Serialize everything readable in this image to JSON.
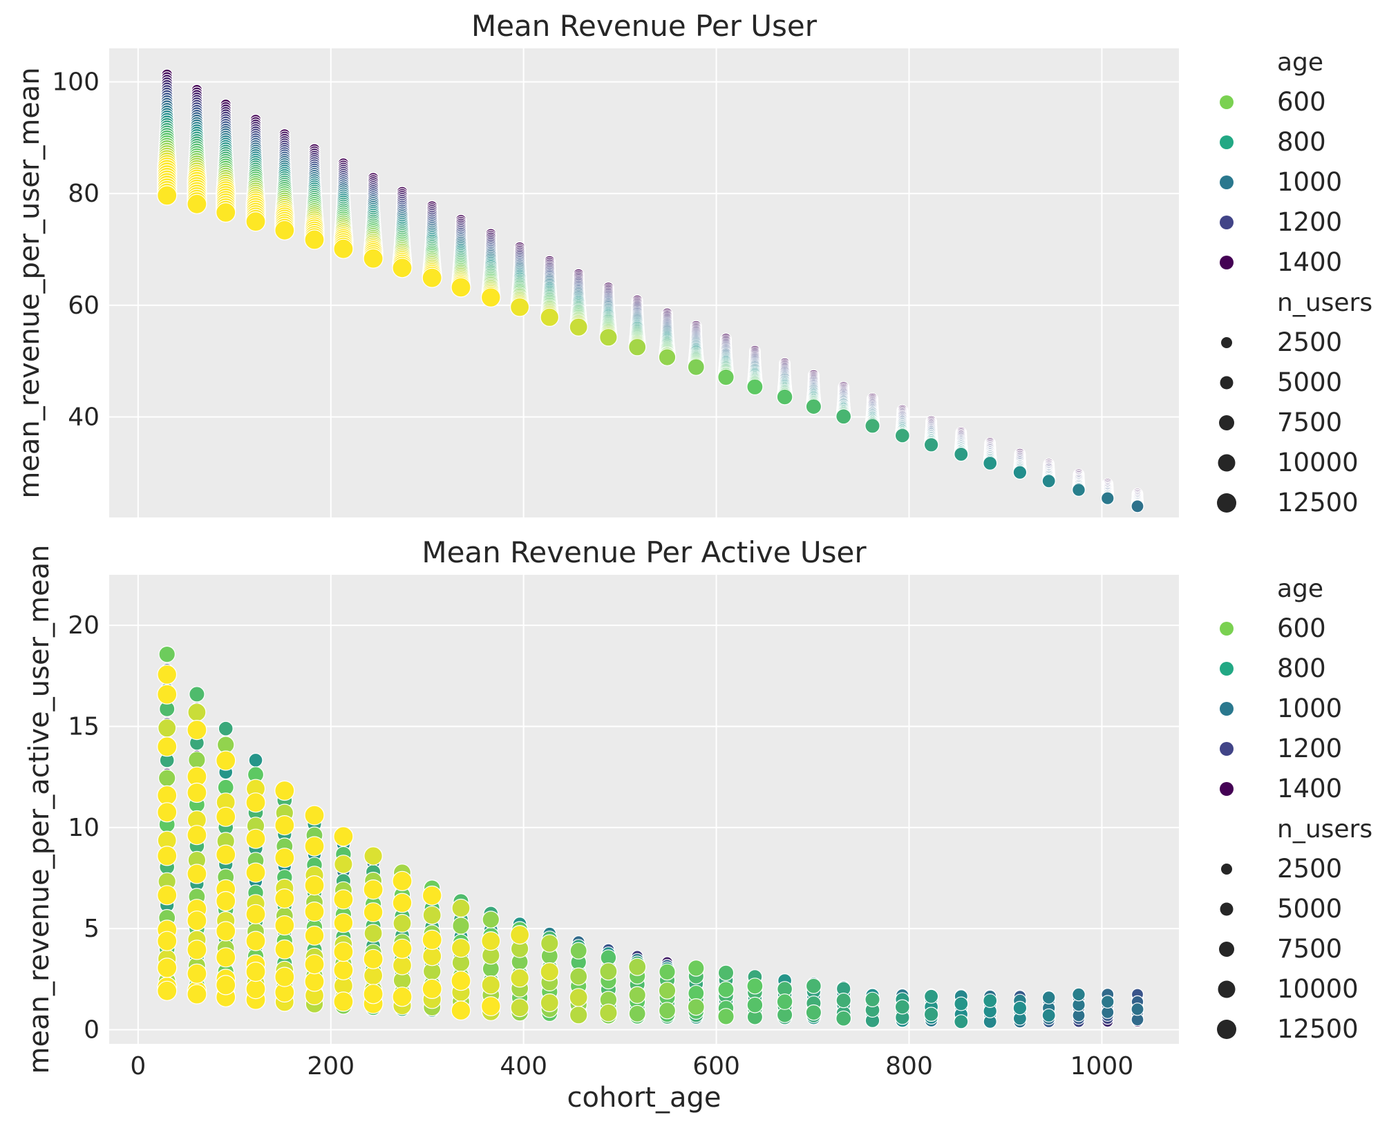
{
  "chart_data": [
    {
      "type": "scatter",
      "title": "Mean Revenue Per User",
      "xlabel": "",
      "ylabel": "mean_revenue_per_user_mean",
      "xlim": [
        -30,
        1080
      ],
      "ylim": [
        22,
        106
      ],
      "xticks": [
        0,
        200,
        400,
        600,
        800,
        1000
      ],
      "xtick_labels": [
        "",
        "",
        "",
        "",
        "",
        ""
      ],
      "yticks": [
        40,
        60,
        80,
        100
      ],
      "ytick_labels": [
        "40",
        "60",
        "80",
        "100"
      ],
      "grid": true,
      "legend_placement": "right",
      "hue": "age",
      "size": "n_users",
      "model": "per_user",
      "cohort_ages": [
        30,
        61,
        91,
        122,
        152,
        183,
        213,
        244,
        274,
        305,
        335,
        366,
        396,
        427,
        457,
        488,
        518,
        549,
        579,
        610,
        640,
        671,
        701,
        732,
        762,
        793,
        823,
        854,
        884,
        915,
        945,
        976,
        1006,
        1037
      ],
      "points_note": ""
    },
    {
      "type": "scatter",
      "title": "Mean Revenue Per Active User",
      "xlabel": "cohort_age",
      "ylabel": "mean_revenue_per_active_user_mean",
      "xlim": [
        -30,
        1080
      ],
      "ylim": [
        -0.7,
        22.5
      ],
      "xticks": [
        0,
        200,
        400,
        600,
        800,
        1000
      ],
      "xtick_labels": [
        "0",
        "200",
        "400",
        "600",
        "800",
        "1000"
      ],
      "yticks": [
        0,
        5,
        10,
        15,
        20
      ],
      "ytick_labels": [
        "0",
        "5",
        "10",
        "15",
        "20"
      ],
      "grid": true,
      "legend_placement": "right",
      "hue": "age",
      "size": "n_users",
      "model": "per_active_user",
      "cohort_ages": [
        30,
        61,
        91,
        122,
        152,
        183,
        213,
        244,
        274,
        305,
        335,
        366,
        396,
        427,
        457,
        488,
        518,
        549,
        579,
        610,
        640,
        671,
        701,
        732,
        762,
        793,
        823,
        854,
        884,
        915,
        945,
        976,
        1006,
        1037
      ],
      "points_note": ""
    }
  ],
  "legend": {
    "hue_title": "age",
    "hue_items": [
      {
        "label": "600",
        "color": "#7ad151"
      },
      {
        "label": "800",
        "color": "#22a884"
      },
      {
        "label": "1000",
        "color": "#2a788e"
      },
      {
        "label": "1200",
        "color": "#414487"
      },
      {
        "label": "1400",
        "color": "#440154"
      }
    ],
    "size_title": "n_users",
    "size_items": [
      {
        "label": "2500",
        "r": 8
      },
      {
        "label": "5000",
        "r": 9.5
      },
      {
        "label": "7500",
        "r": 11
      },
      {
        "label": "10000",
        "r": 12.5
      },
      {
        "label": "12500",
        "r": 14
      }
    ]
  },
  "colors": {
    "panel_bg": "#ebebeb",
    "grid": "#ffffff",
    "text": "#262626"
  }
}
